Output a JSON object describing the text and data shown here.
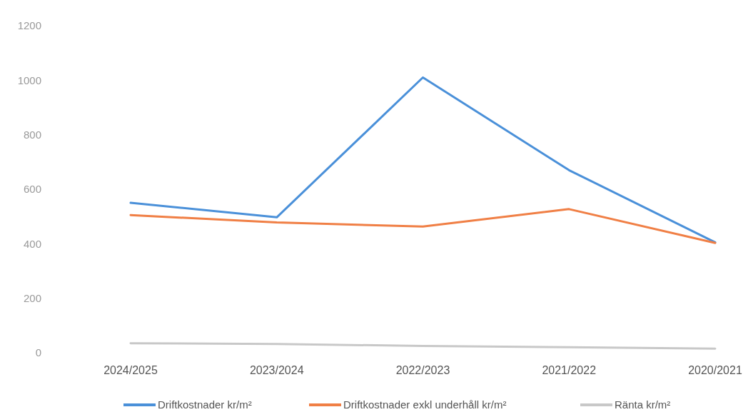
{
  "chart_data": {
    "type": "line",
    "categories": [
      "2024/2025",
      "2023/2024",
      "2022/2023",
      "2021/2022",
      "2020/2021"
    ],
    "series": [
      {
        "name": "Driftkostnader kr/m²",
        "color": "#4a90d9",
        "values": [
          550,
          497,
          1010,
          670,
          405
        ]
      },
      {
        "name": "Driftkostnader exkl underhåll kr/m²",
        "color": "#f07f45",
        "values": [
          505,
          478,
          463,
          527,
          403
        ]
      },
      {
        "name": "Ränta kr/m²",
        "color": "#c8c8c8",
        "values": [
          35,
          32,
          25,
          20,
          15
        ]
      }
    ],
    "ylim": [
      0,
      1200
    ],
    "yticks": [
      0,
      200,
      400,
      600,
      800,
      1000,
      1200
    ],
    "legend": "bottom",
    "marker": "none",
    "line_style": "solid"
  }
}
